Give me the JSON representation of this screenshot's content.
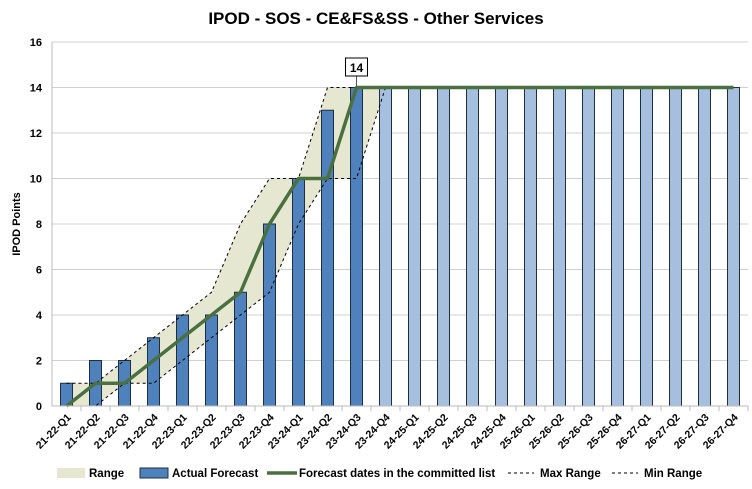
{
  "chart_data": {
    "type": "bar",
    "title": "IPOD - SOS - CE&FS&SS - Other Services",
    "xlabel": "",
    "ylabel": "IPOD Points",
    "ylim": [
      0,
      16
    ],
    "yticks": [
      0,
      2,
      4,
      6,
      8,
      10,
      12,
      14,
      16
    ],
    "grid": true,
    "legend_position": "bottom",
    "categories": [
      "21-22-Q1",
      "21-22-Q2",
      "21-22-Q3",
      "21-22-Q4",
      "22-23-Q1",
      "22-23-Q2",
      "22-23-Q3",
      "22-23-Q4",
      "23-24-Q1",
      "23-24-Q2",
      "23-24-Q3",
      "23-24-Q4",
      "24-25-Q1",
      "24-25-Q2",
      "24-25-Q3",
      "24-25-Q4",
      "25-26-Q1",
      "25-26-Q2",
      "25-26-Q3",
      "25-26-Q4",
      "26-27-Q1",
      "26-27-Q2",
      "26-27-Q3",
      "26-27-Q4"
    ],
    "series": [
      {
        "name": "Actual Forecast",
        "kind": "bar",
        "color": "#4f81bd",
        "future_color": "#a7bfde",
        "actual_count": 11,
        "values": [
          1,
          2,
          2,
          3,
          4,
          4,
          5,
          8,
          10,
          13,
          14,
          14,
          14,
          14,
          14,
          14,
          14,
          14,
          14,
          14,
          14,
          14,
          14,
          14
        ]
      },
      {
        "name": "Forecast dates in the committed list",
        "kind": "line",
        "color": "#4a7040",
        "values": [
          0,
          1,
          1,
          2,
          3,
          4,
          5,
          8,
          10,
          10,
          14,
          14,
          14,
          14,
          14,
          14,
          14,
          14,
          14,
          14,
          14,
          14,
          14,
          14
        ]
      },
      {
        "name": "Max Range",
        "kind": "dashed",
        "color": "#000000",
        "values": [
          1,
          1,
          2,
          3,
          4,
          5,
          8,
          10,
          10,
          14,
          14,
          14,
          14,
          14,
          14,
          14,
          14,
          14,
          14,
          14,
          14,
          14,
          14,
          14
        ]
      },
      {
        "name": "Min Range",
        "kind": "dashed",
        "color": "#000000",
        "values": [
          0,
          0,
          1,
          1,
          2,
          3,
          4,
          5,
          8,
          10,
          10,
          14,
          14,
          14,
          14,
          14,
          14,
          14,
          14,
          14,
          14,
          14,
          14,
          14
        ]
      },
      {
        "name": "Range",
        "kind": "area",
        "color": "#e6e7d1"
      }
    ],
    "annotations": [
      {
        "category": "23-24-Q3",
        "text": "14"
      }
    ]
  }
}
